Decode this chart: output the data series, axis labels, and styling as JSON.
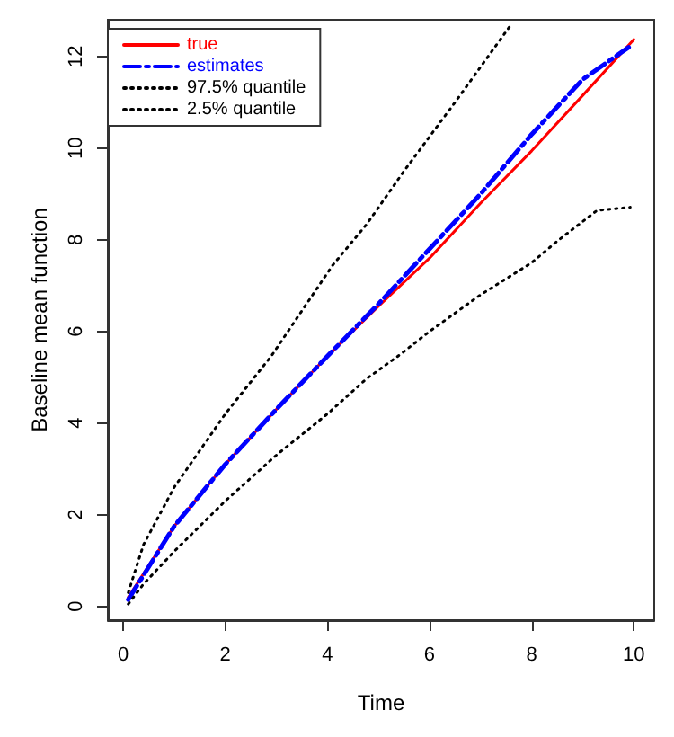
{
  "chart_data": {
    "type": "line",
    "xlabel": "Time",
    "ylabel": "Baseline mean function",
    "xlim": [
      -0.3,
      10.4
    ],
    "ylim": [
      -0.3,
      12.8
    ],
    "xticks": [
      0,
      2,
      4,
      6,
      8,
      10
    ],
    "yticks": [
      0,
      2,
      4,
      6,
      8,
      10,
      12
    ],
    "grid": false,
    "legend": "top left",
    "marker": "none",
    "series": [
      {
        "name": "true",
        "color": "#ff0000",
        "line_style": "solid",
        "x": [
          0.1,
          1,
          2,
          3,
          4,
          5,
          6,
          7,
          8,
          9,
          10
        ],
        "values": [
          0.2,
          1.75,
          3.1,
          4.3,
          5.46,
          6.55,
          7.6,
          8.8,
          9.94,
          11.15,
          12.37
        ]
      },
      {
        "name": "estimates",
        "color": "#0000ff",
        "line_style": "dashed",
        "x": [
          0.1,
          1,
          2,
          3,
          4,
          5,
          6,
          7,
          8,
          9,
          9.9
        ],
        "values": [
          0.15,
          1.75,
          3.1,
          4.3,
          5.46,
          6.6,
          7.8,
          9.0,
          10.3,
          11.5,
          12.2
        ]
      },
      {
        "name": "97.5% quantile",
        "color": "#000000",
        "line_style": "dotted",
        "x": [
          0.1,
          0.4,
          1,
          2,
          2.9,
          4.1,
          4.77,
          5.5,
          6.5,
          7.6
        ],
        "values": [
          0.3,
          1.35,
          2.6,
          4.2,
          5.46,
          7.44,
          8.34,
          9.5,
          11.0,
          12.7
        ]
      },
      {
        "name": "2.5% quantile",
        "color": "#000000",
        "line_style": "dotted",
        "x": [
          0.1,
          0.4,
          1,
          2,
          3,
          4,
          4.77,
          5.43,
          6,
          7,
          8,
          8.49,
          9.28,
          9.93
        ],
        "values": [
          0.05,
          0.49,
          1.2,
          2.3,
          3.3,
          4.2,
          4.97,
          5.5,
          6.0,
          6.8,
          7.5,
          7.96,
          8.64,
          8.71
        ]
      }
    ]
  }
}
